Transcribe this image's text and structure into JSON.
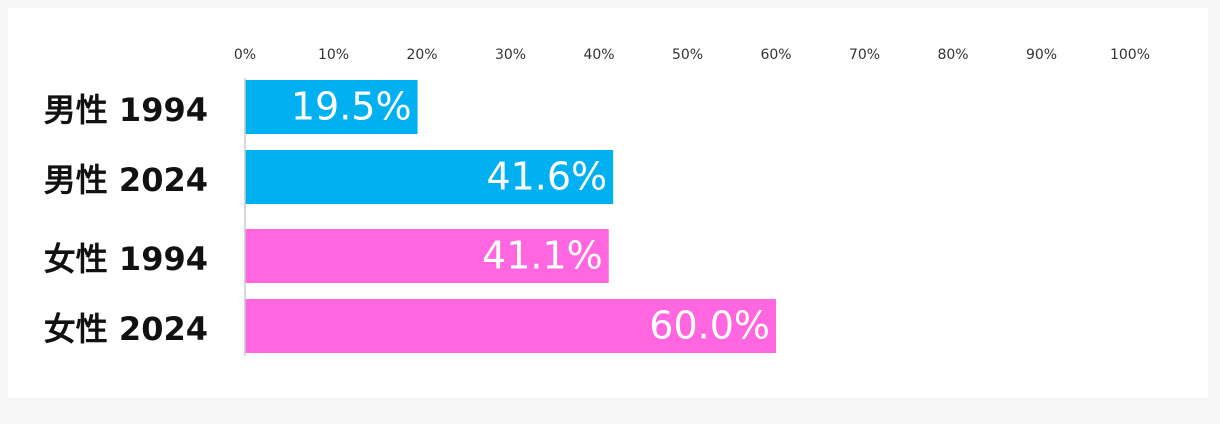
{
  "chart_data": {
    "type": "bar",
    "orientation": "horizontal",
    "categories": [
      "男性 1994",
      "男性 2024",
      "女性 1994",
      "女性 2024"
    ],
    "values": [
      19.5,
      41.6,
      41.1,
      60.0
    ],
    "value_labels": [
      "19.5%",
      "41.6%",
      "41.1%",
      "60.0%"
    ],
    "colors": [
      "#00b0f0",
      "#00b0f0",
      "#ff66e0",
      "#ff66e0"
    ],
    "xlim": [
      0,
      100
    ],
    "xticks": [
      {
        "value": 0,
        "label": "0%"
      },
      {
        "value": 10,
        "label": "10%"
      },
      {
        "value": 20,
        "label": "20%"
      },
      {
        "value": 30,
        "label": "30%"
      },
      {
        "value": 40,
        "label": "40%"
      },
      {
        "value": 50,
        "label": "50%"
      },
      {
        "value": 60,
        "label": "60%"
      },
      {
        "value": 70,
        "label": "70%"
      },
      {
        "value": 80,
        "label": "80%"
      },
      {
        "value": 90,
        "label": "90%"
      },
      {
        "value": 100,
        "label": "100%"
      }
    ],
    "grid": false
  }
}
